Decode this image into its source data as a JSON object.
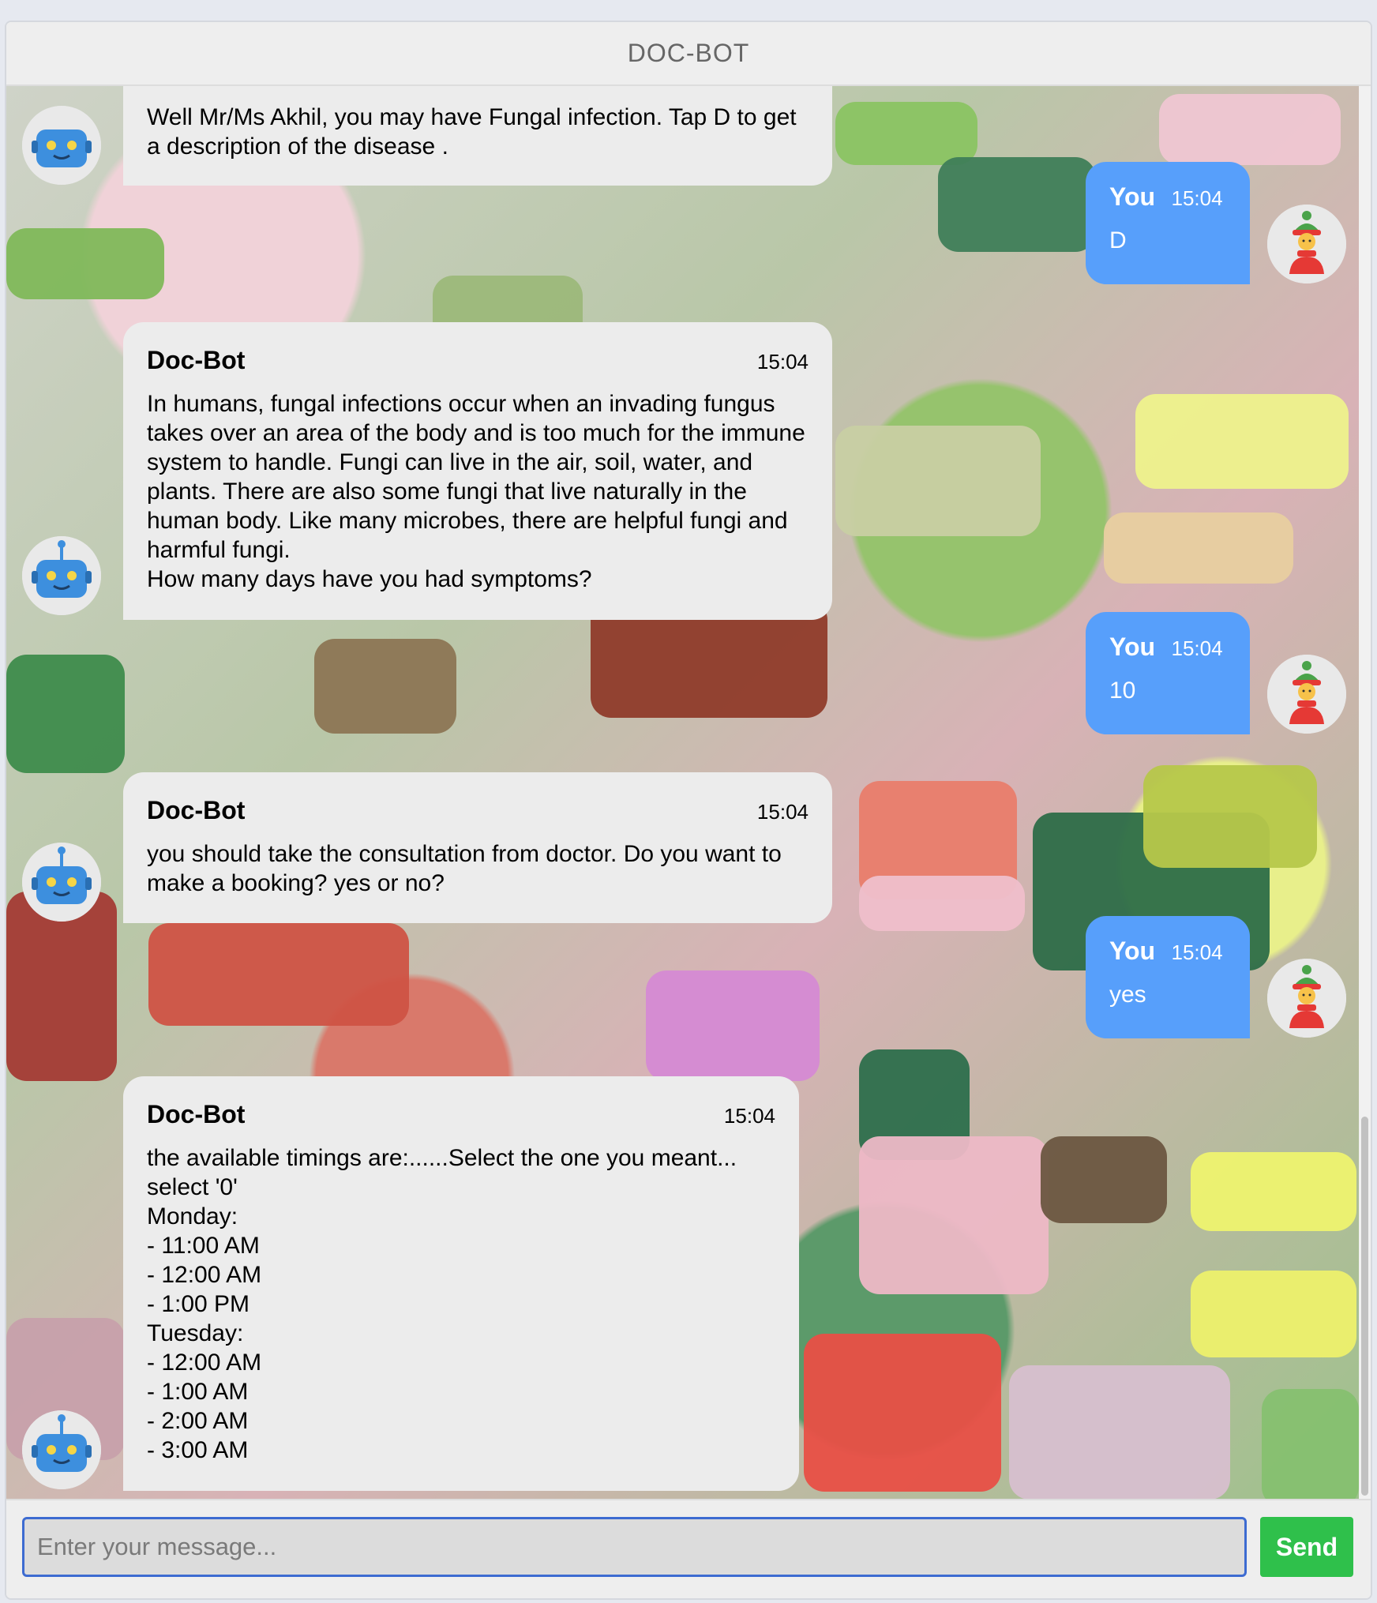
{
  "app": {
    "title": "DOC-BOT"
  },
  "messages": [
    {
      "sender": "Doc-Bot",
      "time": "",
      "text": "Well Mr/Ms Akhil, you may have Fungal infection. Tap D to get a description of the disease ."
    },
    {
      "sender": "You",
      "time": "15:04",
      "text": "D"
    },
    {
      "sender": "Doc-Bot",
      "time": "15:04",
      "text": "In humans, fungal infections occur when an invading fungus takes over an area of the body and is too much for the immune system to handle. Fungi can live in the air, soil, water, and plants. There are also some fungi that live naturally in the human body. Like many microbes, there are helpful fungi and harmful fungi.\nHow many days have you had symptoms?"
    },
    {
      "sender": "You",
      "time": "15:04",
      "text": "10"
    },
    {
      "sender": "Doc-Bot",
      "time": "15:04",
      "text": "you should take the consultation from doctor. Do you want to make a booking? yes or no?"
    },
    {
      "sender": "You",
      "time": "15:04",
      "text": "yes"
    },
    {
      "sender": "Doc-Bot",
      "time": "15:04",
      "text": "the available timings are:......Select the one you meant... select '0'\nMonday:\n- 11:00 AM\n- 12:00 AM\n- 1:00 PM\nTuesday:\n- 12:00 AM\n- 1:00 AM\n- 2:00 AM\n- 3:00 AM"
    }
  ],
  "composer": {
    "placeholder": "Enter your message...",
    "send_label": "Send"
  },
  "colors": {
    "user_bubble": "#579ffb",
    "bot_bubble": "#ececec",
    "send_button": "#2fc04b",
    "input_border": "#3d6bd1"
  },
  "icons": {
    "bot_avatar": "robot-avatar-icon",
    "user_avatar": "person-with-hat-avatar-icon"
  }
}
